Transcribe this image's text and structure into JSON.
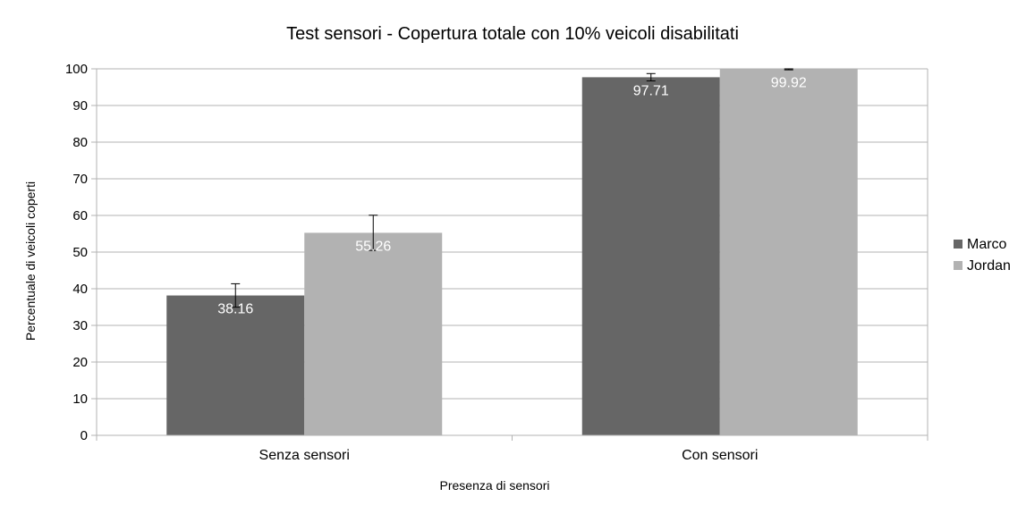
{
  "chart_data": {
    "type": "bar",
    "title": "Test sensori - Copertura totale con 10% veicoli disabilitati",
    "xlabel": "Presenza di sensori",
    "ylabel": "Percentuale di veicoli coperti",
    "categories": [
      "Senza sensori",
      "Con sensori"
    ],
    "series": [
      {
        "name": "Marco",
        "color": "#666666",
        "values": [
          38.16,
          97.71
        ],
        "errors": [
          3.2,
          1.0
        ],
        "labels": [
          "38.16",
          "97.71"
        ]
      },
      {
        "name": "Jordan",
        "color": "#b2b2b2",
        "values": [
          55.26,
          99.92
        ],
        "errors": [
          4.8,
          0.2
        ],
        "labels": [
          "55.26",
          "99.92"
        ]
      }
    ],
    "ylim": [
      0,
      100
    ],
    "yticks": [
      0,
      10,
      20,
      30,
      40,
      50,
      60,
      70,
      80,
      90,
      100
    ],
    "ytick_labels": [
      "0",
      "10",
      "20",
      "30",
      "40",
      "50",
      "60",
      "70",
      "80",
      "90",
      "100"
    ],
    "grid": true,
    "legend": "right"
  }
}
